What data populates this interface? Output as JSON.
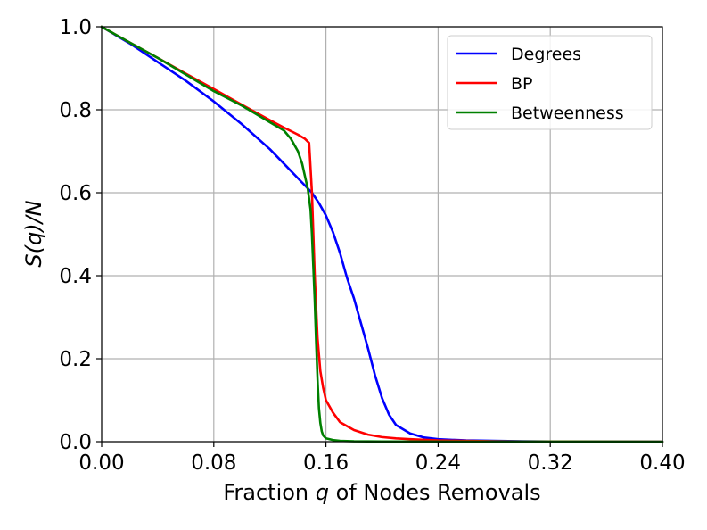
{
  "chart_data": {
    "type": "line",
    "xlabel_prefix": "Fraction ",
    "xlabel_var": "q",
    "xlabel_suffix": " of Nodes Removals",
    "ylabel": "S(q)/N",
    "xlim": [
      0.0,
      0.4
    ],
    "ylim": [
      0.0,
      1.0
    ],
    "xticks": [
      "0.00",
      "0.08",
      "0.16",
      "0.24",
      "0.32",
      "0.40"
    ],
    "yticks": [
      "0.0",
      "0.2",
      "0.4",
      "0.6",
      "0.8",
      "1.0"
    ],
    "grid": true,
    "legend_position": "top-right",
    "series": [
      {
        "name": "Degrees",
        "color": "#0000ff",
        "x": [
          0.0,
          0.02,
          0.04,
          0.06,
          0.08,
          0.1,
          0.12,
          0.13,
          0.14,
          0.15,
          0.155,
          0.16,
          0.165,
          0.17,
          0.175,
          0.18,
          0.185,
          0.19,
          0.195,
          0.2,
          0.205,
          0.21,
          0.22,
          0.23,
          0.24,
          0.26,
          0.28,
          0.3,
          0.32,
          0.36,
          0.4
        ],
        "y": [
          1.0,
          0.96,
          0.915,
          0.87,
          0.82,
          0.765,
          0.705,
          0.67,
          0.635,
          0.6,
          0.575,
          0.545,
          0.505,
          0.455,
          0.395,
          0.345,
          0.285,
          0.225,
          0.16,
          0.105,
          0.065,
          0.04,
          0.02,
          0.01,
          0.006,
          0.003,
          0.002,
          0.001,
          0.0005,
          0.0002,
          0.0
        ]
      },
      {
        "name": "BP",
        "color": "#ff0000",
        "x": [
          0.0,
          0.02,
          0.04,
          0.06,
          0.08,
          0.1,
          0.12,
          0.13,
          0.14,
          0.145,
          0.148,
          0.15,
          0.152,
          0.154,
          0.156,
          0.158,
          0.16,
          0.165,
          0.17,
          0.18,
          0.19,
          0.2,
          0.21,
          0.22,
          0.24,
          0.26,
          0.28,
          0.3,
          0.35,
          0.4
        ],
        "y": [
          1.0,
          0.962,
          0.925,
          0.887,
          0.85,
          0.812,
          0.775,
          0.757,
          0.74,
          0.73,
          0.72,
          0.6,
          0.4,
          0.25,
          0.17,
          0.13,
          0.1,
          0.07,
          0.047,
          0.028,
          0.017,
          0.011,
          0.008,
          0.006,
          0.003,
          0.002,
          0.001,
          0.0005,
          0.0002,
          0.0
        ]
      },
      {
        "name": "Betweenness",
        "color": "#008000",
        "x": [
          0.0,
          0.02,
          0.04,
          0.06,
          0.08,
          0.1,
          0.12,
          0.13,
          0.135,
          0.14,
          0.143,
          0.145,
          0.147,
          0.149,
          0.15,
          0.151,
          0.152,
          0.153,
          0.154,
          0.155,
          0.156,
          0.157,
          0.158,
          0.16,
          0.165,
          0.17,
          0.18,
          0.2,
          0.25,
          0.3,
          0.4
        ],
        "y": [
          1.0,
          0.962,
          0.925,
          0.885,
          0.845,
          0.81,
          0.77,
          0.75,
          0.73,
          0.7,
          0.67,
          0.64,
          0.61,
          0.56,
          0.5,
          0.42,
          0.34,
          0.24,
          0.15,
          0.08,
          0.045,
          0.025,
          0.015,
          0.008,
          0.004,
          0.002,
          0.001,
          0.0005,
          0.0002,
          0.0001,
          0.0
        ]
      }
    ]
  }
}
